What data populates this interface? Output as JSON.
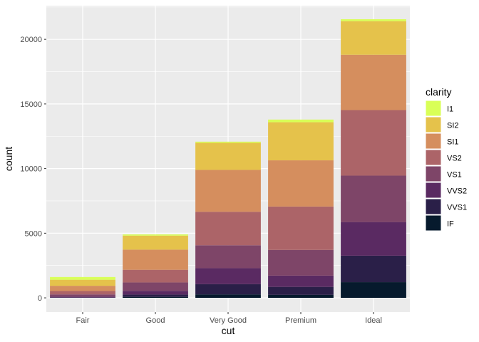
{
  "chart_data": {
    "type": "bar",
    "stacked": true,
    "xlabel": "cut",
    "ylabel": "count",
    "categories": [
      "Fair",
      "Good",
      "Very Good",
      "Premium",
      "Ideal"
    ],
    "yticks": [
      0,
      5000,
      10000,
      15000,
      20000
    ],
    "ylim": [
      -1100,
      22600
    ],
    "grid": true,
    "legend": {
      "title": "clarity",
      "position": "right"
    },
    "series": [
      {
        "name": "I1",
        "color": "#D9FF57",
        "values": [
          210,
          96,
          84,
          205,
          146
        ]
      },
      {
        "name": "SI2",
        "color": "#E5C24B",
        "values": [
          466,
          1081,
          2100,
          2949,
          2598
        ]
      },
      {
        "name": "SI1",
        "color": "#D58E5E",
        "values": [
          408,
          1560,
          3240,
          3575,
          4282
        ]
      },
      {
        "name": "VS2",
        "color": "#AC6468",
        "values": [
          261,
          978,
          2591,
          3357,
          5071
        ]
      },
      {
        "name": "VS1",
        "color": "#7E4568",
        "values": [
          170,
          648,
          1775,
          1989,
          3589
        ]
      },
      {
        "name": "VVS2",
        "color": "#5A2A62",
        "values": [
          69,
          286,
          1235,
          870,
          2606
        ]
      },
      {
        "name": "VVS1",
        "color": "#2A1F48",
        "values": [
          17,
          186,
          789,
          616,
          2047
        ]
      },
      {
        "name": "IF",
        "color": "#061A2D",
        "values": [
          9,
          71,
          268,
          230,
          1212
        ]
      }
    ]
  }
}
